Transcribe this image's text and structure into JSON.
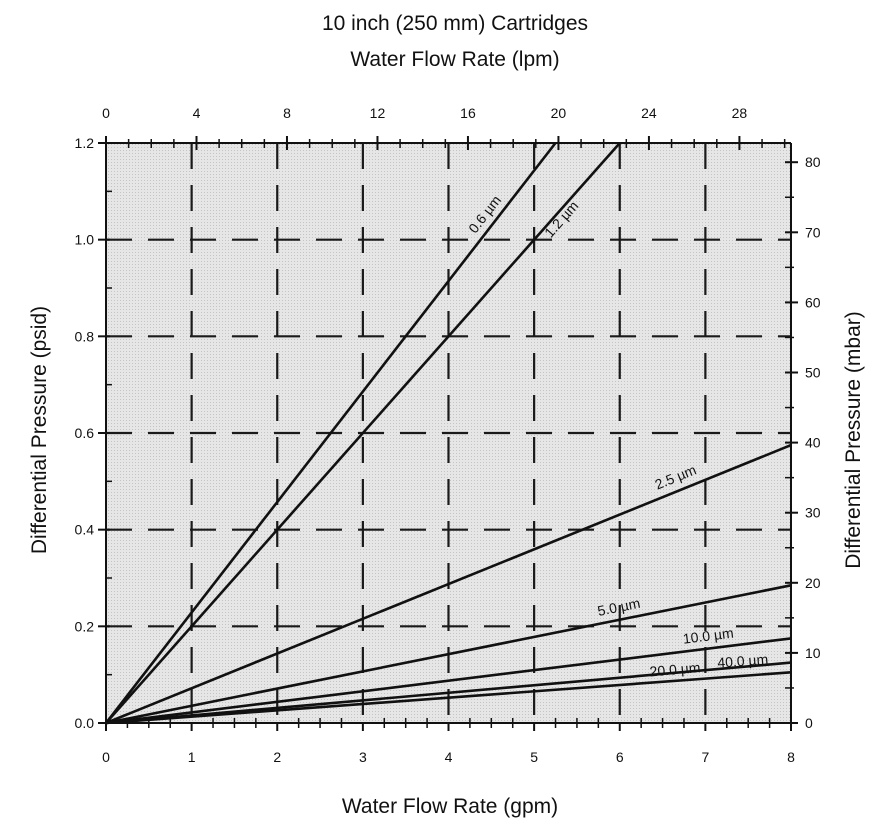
{
  "chart_data": {
    "type": "line",
    "title": "10 inch (250 mm) Cartridges",
    "subtitle": "Water Flow Rate (lpm)",
    "xlabel": "Water Flow Rate (gpm)",
    "ylabel": "Differential Pressure (psid)",
    "y2label": "Differential Pressure (mbar)",
    "xlim": [
      0,
      8
    ],
    "ylim": [
      0,
      1.2
    ],
    "x2lim": [
      0,
      30.28
    ],
    "y2lim": [
      0,
      82.74
    ],
    "x_ticks": [
      0,
      1,
      2,
      3,
      4,
      5,
      6,
      7,
      8
    ],
    "x_tick_labels": [
      "0",
      "1",
      "2",
      "3",
      "4",
      "5",
      "6",
      "7",
      "8"
    ],
    "y_ticks": [
      0,
      0.2,
      0.4,
      0.6,
      0.8,
      1.0,
      1.2
    ],
    "y_tick_labels": [
      "0.0",
      "0.2",
      "0.4",
      "0.6",
      "0.8",
      "1.0",
      "1.2"
    ],
    "x2_ticks": [
      0,
      4,
      8,
      12,
      16,
      20,
      24,
      28
    ],
    "x2_tick_labels": [
      "0",
      "4",
      "8",
      "12",
      "16",
      "20",
      "24",
      "28"
    ],
    "y2_ticks": [
      0,
      10,
      20,
      30,
      40,
      50,
      60,
      70,
      80
    ],
    "y2_tick_labels": [
      "0",
      "10",
      "20",
      "30",
      "40",
      "50",
      "60",
      "70",
      "80"
    ],
    "grid": true,
    "series": [
      {
        "name": "0.6 µm",
        "x": [
          0,
          5.25
        ],
        "y": [
          0,
          1.2
        ]
      },
      {
        "name": "1.2 µm",
        "x": [
          0,
          6.0
        ],
        "y": [
          0,
          1.2
        ]
      },
      {
        "name": "2.5 µm",
        "x": [
          0,
          8
        ],
        "y": [
          0,
          0.575
        ]
      },
      {
        "name": "5.0 µm",
        "x": [
          0,
          8
        ],
        "y": [
          0,
          0.285
        ]
      },
      {
        "name": "10.0 µm",
        "x": [
          0,
          8
        ],
        "y": [
          0,
          0.175
        ]
      },
      {
        "name": "20.0 µm",
        "x": [
          0,
          8
        ],
        "y": [
          0,
          0.125
        ]
      },
      {
        "name": "40.0 µm",
        "x": [
          0,
          8
        ],
        "y": [
          0,
          0.105
        ]
      }
    ]
  }
}
